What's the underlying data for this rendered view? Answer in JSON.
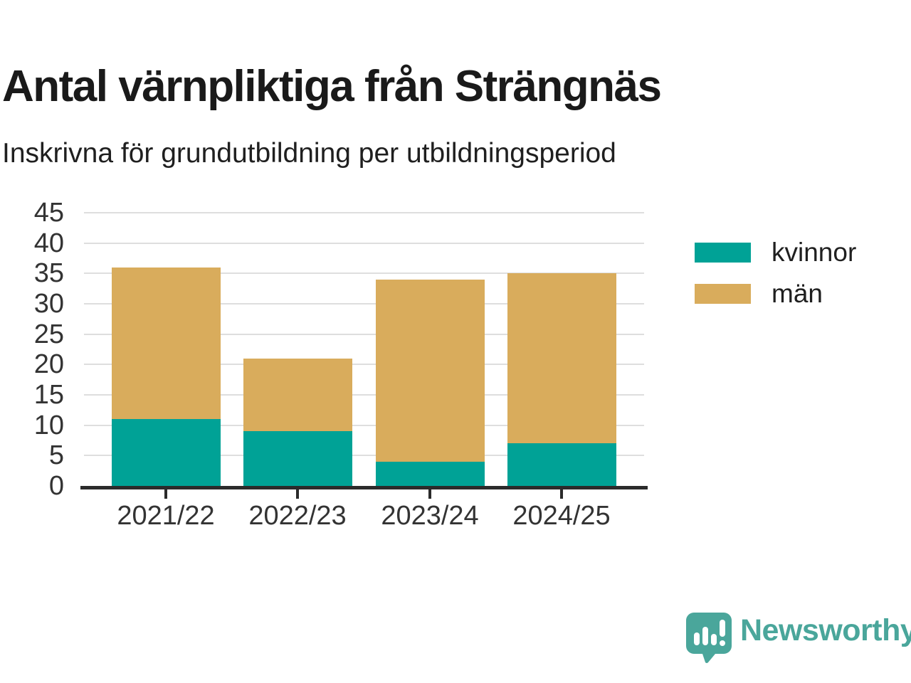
{
  "header": {
    "title": "Antal värnpliktiga från Strängnäs",
    "subtitle": "Inskrivna för grundutbildning per utbildningsperiod"
  },
  "chart_data": {
    "type": "bar",
    "stacked": true,
    "title": "Antal värnpliktiga från Strängnäs",
    "subtitle": "Inskrivna för grundutbildning per utbildningsperiod",
    "categories": [
      "2021/22",
      "2022/23",
      "2023/24",
      "2024/25"
    ],
    "series": [
      {
        "name": "kvinnor",
        "color": "#00a296",
        "values": [
          11,
          9,
          4,
          7
        ]
      },
      {
        "name": "män",
        "color": "#d9ac5c",
        "values": [
          25,
          12,
          30,
          28
        ]
      }
    ],
    "stack_totals": [
      36,
      21,
      34,
      35
    ],
    "xlabel": "",
    "ylabel": "",
    "ylim": [
      0,
      45
    ],
    "yticks": [
      0,
      5,
      10,
      15,
      20,
      25,
      30,
      35,
      40,
      45
    ],
    "grid": true,
    "gridline_color": "#dedede",
    "axis_color": "#2b2b2b",
    "legend_position": "right"
  },
  "legend": {
    "items": [
      {
        "label": "kvinnor",
        "color": "#00a296"
      },
      {
        "label": "män",
        "color": "#d9ac5c"
      }
    ]
  },
  "footer": {
    "brand": "Newsworthy",
    "logo_icon": "bar-chart-speech-bubble-icon",
    "brand_color": "#4aa69b"
  }
}
